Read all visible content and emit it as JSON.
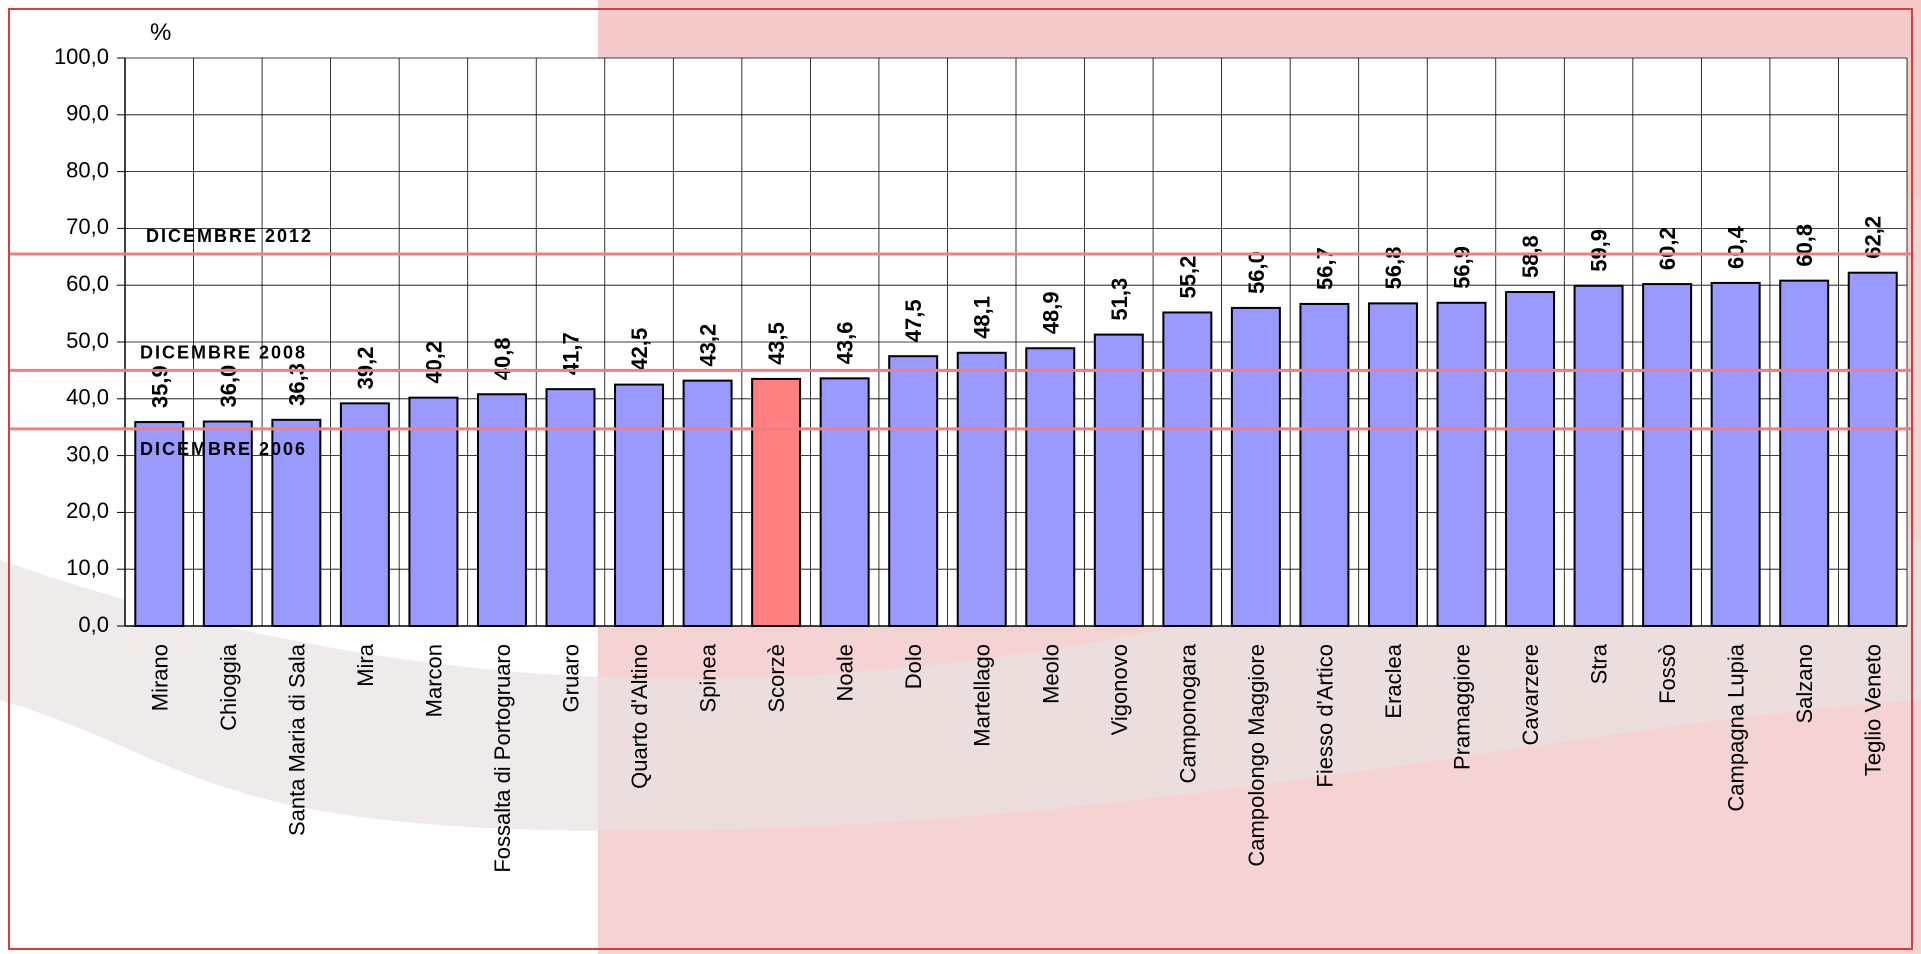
{
  "chart_data": {
    "type": "bar",
    "y_unit": "%",
    "categories": [
      "Mirano",
      "Chioggia",
      "Santa Maria di Sala",
      "Mira",
      "Marcon",
      "Fossalta di Portogruaro",
      "Gruaro",
      "Quarto d'Altino",
      "Spinea",
      "Scorzè",
      "Noale",
      "Dolo",
      "Martellago",
      "Meolo",
      "Vigonovo",
      "Camponogara",
      "Campolongo Maggiore",
      "Fiesso d'Artico",
      "Eraclea",
      "Pramaggiore",
      "Cavarzere",
      "Stra",
      "Fossò",
      "Campagna Lupia",
      "Salzano",
      "Teglio Veneto"
    ],
    "values": [
      35.9,
      36.0,
      36.3,
      39.2,
      40.2,
      40.8,
      41.7,
      42.5,
      43.2,
      43.5,
      43.6,
      47.5,
      48.1,
      48.9,
      51.3,
      55.2,
      56.0,
      56.7,
      56.8,
      56.9,
      58.8,
      59.9,
      60.2,
      60.4,
      60.8,
      62.2
    ],
    "value_labels": [
      "35,9",
      "36,0",
      "36,3",
      "39,2",
      "40,2",
      "40,8",
      "41,7",
      "42,5",
      "43,2",
      "43,5",
      "43,6",
      "47,5",
      "48,1",
      "48,9",
      "51,3",
      "55,2",
      "56,0",
      "56,7",
      "56,8",
      "56,9",
      "58,8",
      "59,9",
      "60,2",
      "60,4",
      "60,8",
      "62,2"
    ],
    "colors": [
      "#9999ff",
      "#9999ff",
      "#9999ff",
      "#9999ff",
      "#9999ff",
      "#9999ff",
      "#9999ff",
      "#9999ff",
      "#9999ff",
      "#ff8080",
      "#9999ff",
      "#9999ff",
      "#9999ff",
      "#9999ff",
      "#9999ff",
      "#9999ff",
      "#9999ff",
      "#9999ff",
      "#9999ff",
      "#9999ff",
      "#9999ff",
      "#9999ff",
      "#9999ff",
      "#9999ff",
      "#9999ff",
      "#9999ff"
    ],
    "ylim": [
      0,
      100
    ],
    "yticks": [
      {
        "value": 0,
        "label": "0,0"
      },
      {
        "value": 10,
        "label": "10,0"
      },
      {
        "value": 20,
        "label": "20,0"
      },
      {
        "value": 30,
        "label": "30,0"
      },
      {
        "value": 40,
        "label": "40,0"
      },
      {
        "value": 50,
        "label": "50,0"
      },
      {
        "value": 60,
        "label": "60,0"
      },
      {
        "value": 70,
        "label": "70,0"
      },
      {
        "value": 80,
        "label": "80,0"
      },
      {
        "value": 90,
        "label": "90,0"
      },
      {
        "value": 100,
        "label": "100,0"
      }
    ],
    "grid": true,
    "reference_lines": [
      {
        "label": "DICEMBRE 2012",
        "value": 65.5,
        "color": "#f08080"
      },
      {
        "label": "DICEMBRE 2008",
        "value": 45,
        "color": "#f08080"
      },
      {
        "label": "DICEMBRE 2006",
        "value": 34.7,
        "color": "#f08080"
      }
    ]
  }
}
